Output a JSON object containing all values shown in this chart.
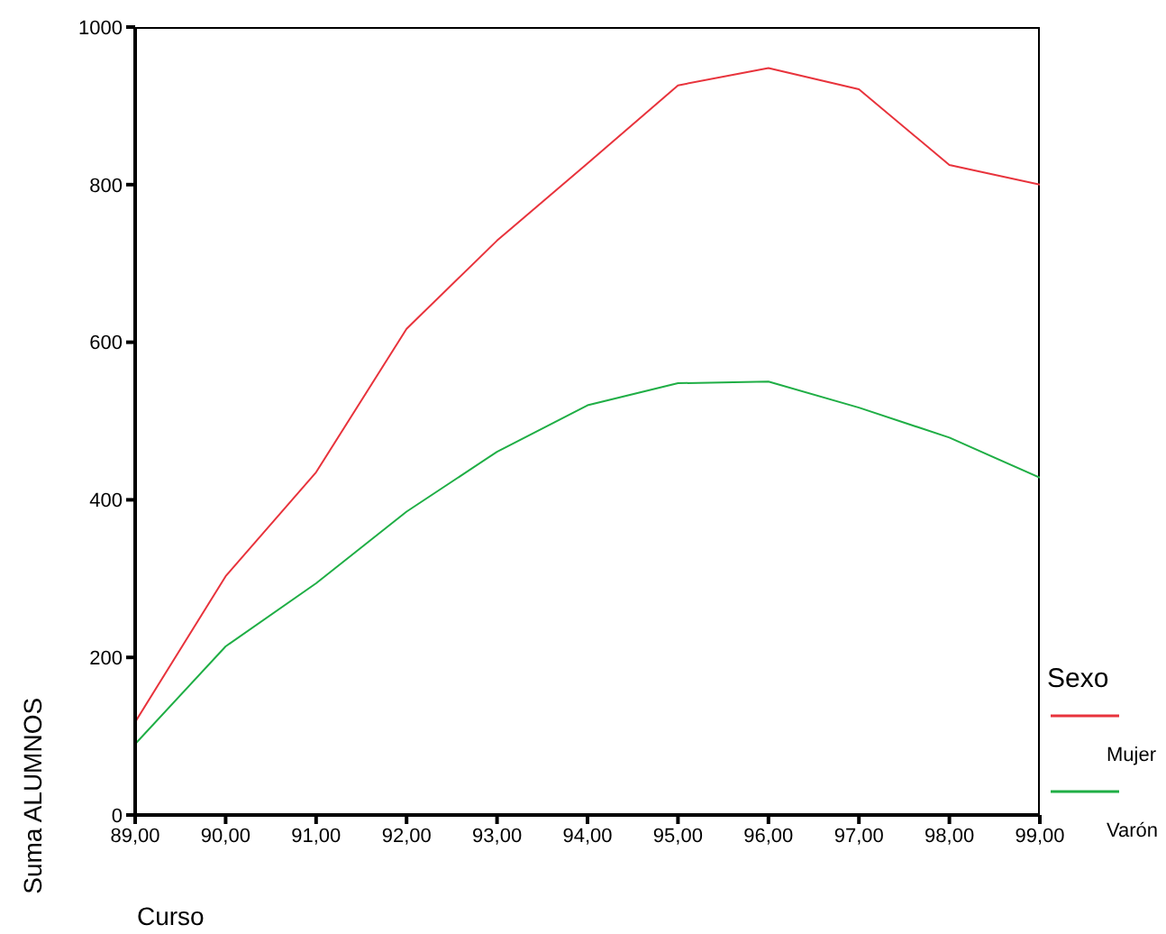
{
  "chart_data": {
    "type": "line",
    "xlabel": "Curso",
    "ylabel": "Suma ALUMNOS",
    "legend_title": "Sexo",
    "legend": "right",
    "x": [
      89,
      90,
      91,
      92,
      93,
      94,
      95,
      96,
      97,
      98,
      99
    ],
    "series": [
      {
        "name": "Mujer",
        "color": "#e8333c",
        "values": [
          118,
          303,
          435,
          617,
          729,
          827,
          926,
          948,
          921,
          825,
          800
        ]
      },
      {
        "name": "Varón",
        "color": "#1fae45",
        "values": [
          90,
          214,
          294,
          385,
          461,
          520,
          548,
          550,
          517,
          479,
          428
        ]
      }
    ],
    "xlim": [
      89,
      99
    ],
    "xticks": [
      {
        "value": 89,
        "label": "89,00"
      },
      {
        "value": 90,
        "label": "90,00"
      },
      {
        "value": 91,
        "label": "91,00"
      },
      {
        "value": 92,
        "label": "92,00"
      },
      {
        "value": 93,
        "label": "93,00"
      },
      {
        "value": 94,
        "label": "94,00"
      },
      {
        "value": 95,
        "label": "95,00"
      },
      {
        "value": 96,
        "label": "96,00"
      },
      {
        "value": 97,
        "label": "97,00"
      },
      {
        "value": 98,
        "label": "98,00"
      },
      {
        "value": 99,
        "label": "99,00"
      }
    ],
    "ylim": [
      0,
      1000
    ],
    "yticks": [
      0,
      200,
      400,
      600,
      800,
      1000
    ],
    "grid": false,
    "marker": "none",
    "line_style": "solid"
  }
}
